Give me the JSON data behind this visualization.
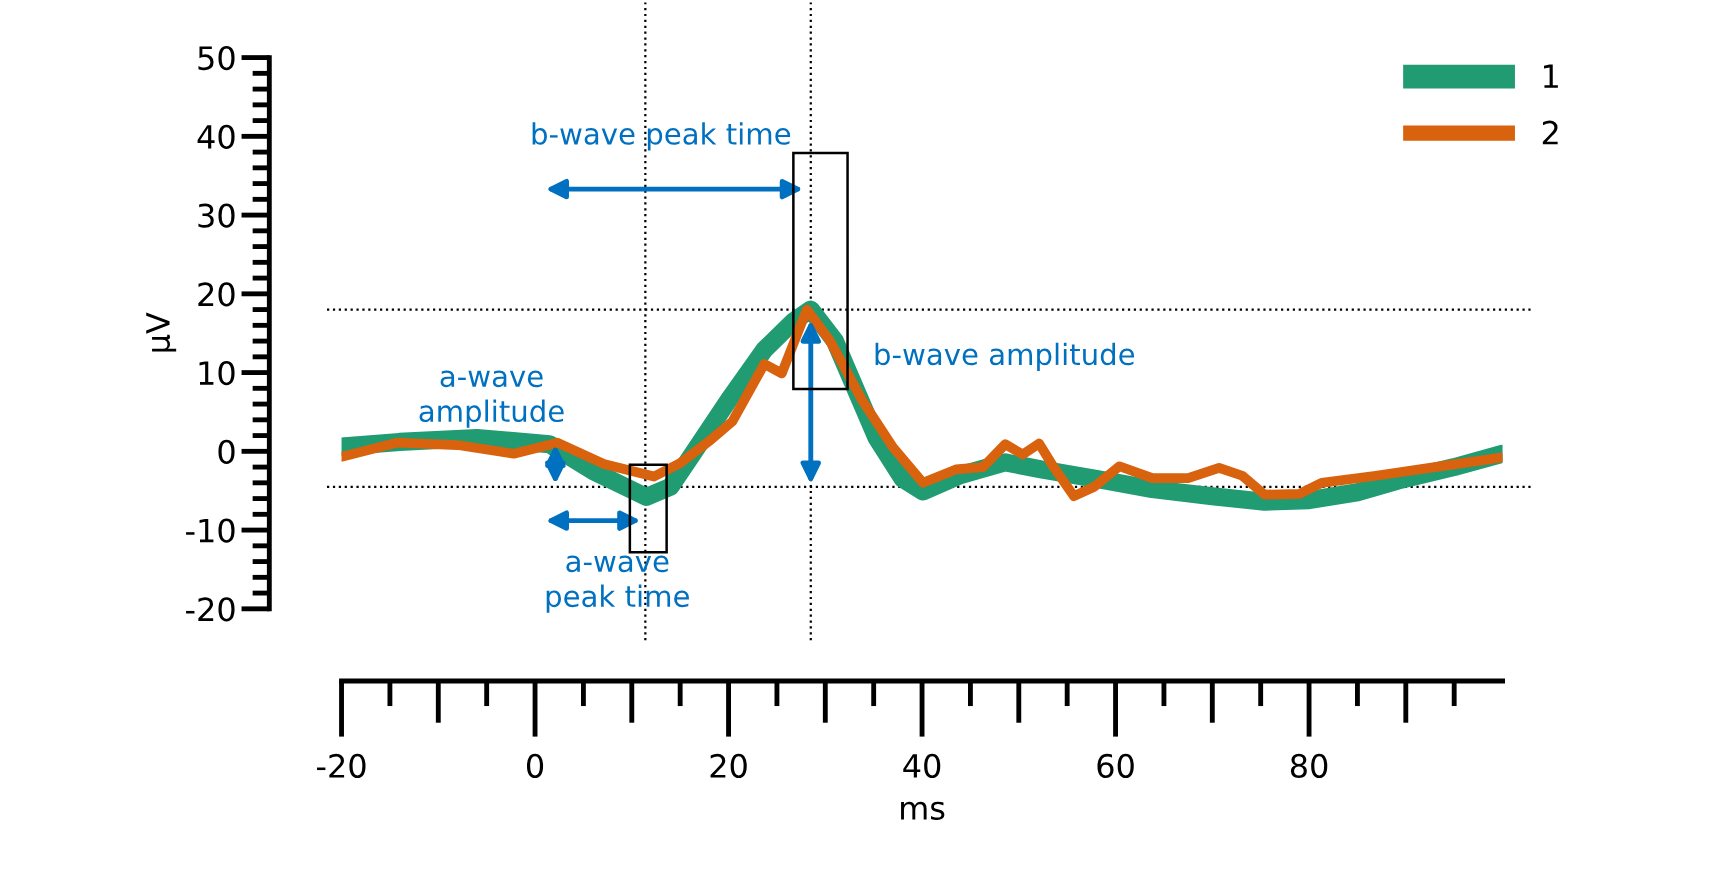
{
  "chart_data": {
    "type": "line",
    "xlabel": "ms",
    "ylabel": "µV",
    "xlim": [
      -20,
      100
    ],
    "ylim": [
      -20,
      50
    ],
    "xticks": [
      -20,
      0,
      20,
      40,
      60,
      80
    ],
    "yticks": [
      -20,
      -10,
      0,
      10,
      20,
      30,
      40,
      50
    ],
    "grid": false,
    "legend": "top right",
    "marker": "none",
    "line_style": "solid",
    "series": [
      {
        "name": "1",
        "color": "#209b72",
        "x": [
          -20,
          -14,
          -6,
          1.5,
          6,
          11.5,
          14,
          16.3,
          20,
          23.7,
          26.7,
          28.5,
          31,
          35.3,
          38,
          40.1,
          44,
          48.6,
          52.3,
          58,
          63.8,
          70,
          75.4,
          80,
          85,
          89.2,
          95,
          100
        ],
        "values": [
          0.6,
          1.2,
          1.7,
          0.9,
          -2.5,
          -5.8,
          -4.5,
          -0.3,
          6.5,
          12.9,
          16.5,
          18,
          14,
          1.7,
          -3.5,
          -5.1,
          -3,
          -1.4,
          -2.3,
          -3.5,
          -4.8,
          -5.7,
          -6.4,
          -6.2,
          -5.2,
          -3.7,
          -2,
          -0.3
        ]
      },
      {
        "name": "2",
        "color": "#d8620d",
        "x": [
          -20,
          -14.3,
          -8,
          -2.2,
          2.3,
          7.1,
          12.3,
          15,
          18.2,
          20.4,
          23.7,
          25.5,
          28.1,
          30.5,
          33.8,
          37,
          40.1,
          43.5,
          46.3,
          48.6,
          50.4,
          52.1,
          53.6,
          55.7,
          57.8,
          60.4,
          63.8,
          67.5,
          70.7,
          73.1,
          75.4,
          79,
          81.3,
          86.9,
          93,
          99.8
        ],
        "values": [
          -0.7,
          1.1,
          0.8,
          -0.3,
          1.1,
          -1.6,
          -3.2,
          -1.5,
          1.5,
          3.8,
          11.1,
          9.9,
          18,
          14,
          6.5,
          0.5,
          -4,
          -2.3,
          -2,
          0.9,
          -0.4,
          1,
          -2,
          -5.7,
          -4.5,
          -1.9,
          -3.4,
          -3.4,
          -2.1,
          -3.1,
          -5.5,
          -5.4,
          -4,
          -3.1,
          -2,
          -0.8
        ]
      }
    ],
    "ref_lines": [
      {
        "axis": "x",
        "value": 11.4,
        "line_style": "dotted",
        "color": "#000000"
      },
      {
        "axis": "x",
        "value": 28.5,
        "line_style": "dotted",
        "color": "#000000"
      },
      {
        "axis": "y",
        "value": 18,
        "line_style": "dotted",
        "color": "#000000"
      },
      {
        "axis": "y",
        "value": -4.5,
        "line_style": "dotted",
        "color": "#000000"
      }
    ],
    "annotations": [
      "b-wave peak time",
      "b-wave amplitude",
      "a-wave\namplitude",
      "a-wave\npeak time"
    ]
  }
}
